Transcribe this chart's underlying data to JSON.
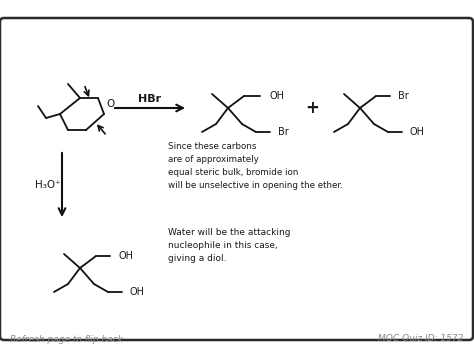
{
  "bg_color": "#ffffff",
  "border_color": "#2a2a2a",
  "text_color": "#1a1a1a",
  "gray_text_color": "#888888",
  "footer_left": "Refresh page to flip back",
  "footer_right": "MOC Quiz ID: 1572",
  "hbr_label": "HBr",
  "h3o_label": "H₃O⁺",
  "arrow_color": "#111111",
  "plus_sign": "+",
  "note1": "Since these carbons\nare of approximately\nequal steric bulk, bromide ion\nwill be unselective in opening the ether.",
  "note2": "Water will be the attacking\nnucleophile in this case,\ngiving a diol."
}
